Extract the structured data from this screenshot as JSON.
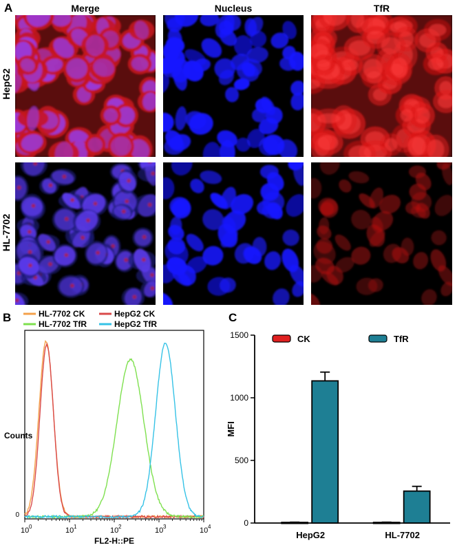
{
  "panel_a": {
    "label": "A",
    "columns": [
      "Merge",
      "Nucleus",
      "TfR"
    ],
    "rows": [
      "HepG2",
      "HL-7702"
    ]
  },
  "panel_b": {
    "label": "B",
    "chart_data": {
      "type": "line",
      "xlabel": "FL2-H::PE",
      "ylabel": "Counts",
      "x_scale": "log",
      "xlim": [
        1,
        10000
      ],
      "x_tick_labels": [
        "10",
        "10",
        "10",
        "10",
        "10"
      ],
      "x_tick_exponents": [
        "0",
        "1",
        "2",
        "3",
        "4"
      ],
      "y_tick_labels": [
        "0"
      ],
      "legend_position": "top",
      "series": [
        {
          "name": "HL-7702 CK",
          "color": "#f4a04a",
          "peak_x": 3.0,
          "sigma_log": 0.16,
          "height": 0.96
        },
        {
          "name": "HepG2 CK",
          "color": "#d94a4a",
          "peak_x": 3.1,
          "sigma_log": 0.15,
          "height": 0.94
        },
        {
          "name": "HL-7702 TfR",
          "color": "#7ee04e",
          "peak_x": 230,
          "sigma_log": 0.3,
          "height": 0.86
        },
        {
          "name": "HepG2 TfR",
          "color": "#35c2e6",
          "peak_x": 1400,
          "sigma_log": 0.22,
          "height": 0.95
        }
      ]
    }
  },
  "panel_c": {
    "label": "C",
    "chart_data": {
      "type": "bar",
      "ylabel": "MFI",
      "ylim": [
        0,
        1500
      ],
      "yticks": [
        0,
        500,
        1000,
        1500
      ],
      "categories": [
        "HepG2",
        "HL-7702"
      ],
      "legend_position": "top",
      "series": [
        {
          "name": "CK",
          "color": "#e02020",
          "values": [
            5,
            5
          ],
          "errors": [
            2,
            2
          ]
        },
        {
          "name": "TfR",
          "color": "#1e7f94",
          "values": [
            1135,
            255
          ],
          "errors": [
            70,
            38
          ]
        }
      ]
    }
  }
}
